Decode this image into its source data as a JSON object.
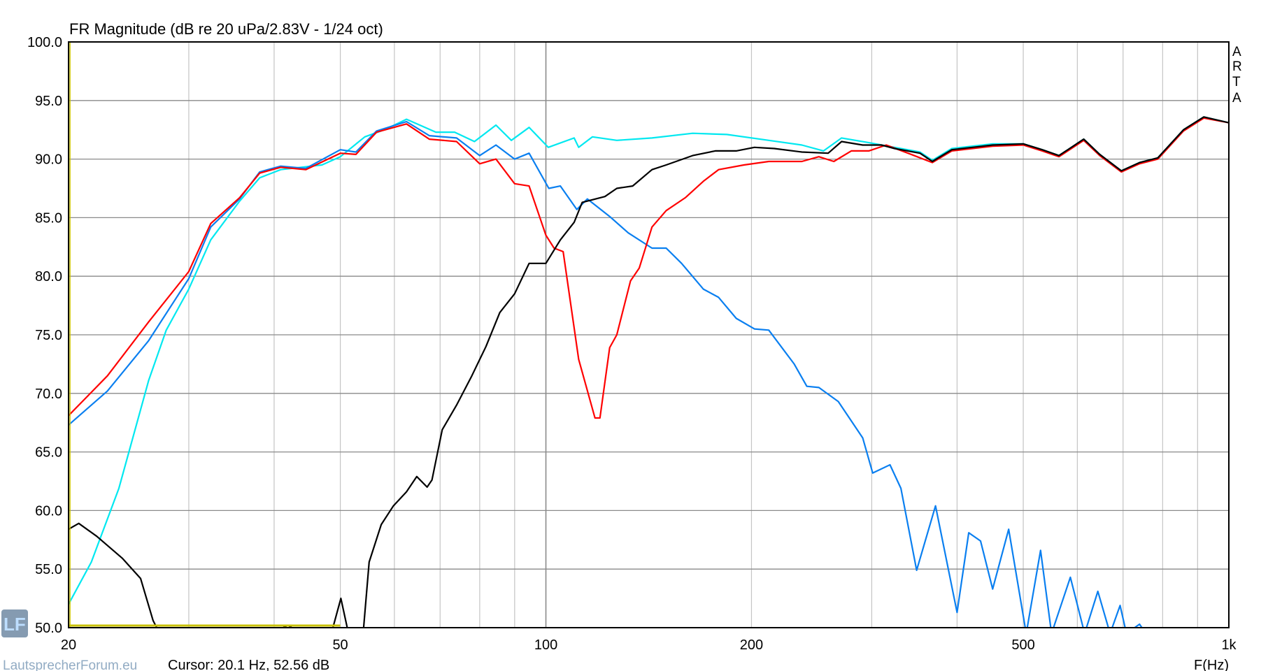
{
  "chart_data": {
    "type": "line",
    "title": "FR Magnitude (dB re 20 uPa/2.83V - 1/24 oct)",
    "xlabel": "F(Hz)",
    "ylabel": "",
    "xscale": "log",
    "xlim": [
      20,
      1000
    ],
    "ylim": [
      50,
      100
    ],
    "grid": true,
    "x_ticks": [
      {
        "v": 20,
        "label": "20"
      },
      {
        "v": 50,
        "label": "50"
      },
      {
        "v": 100,
        "label": "100"
      },
      {
        "v": 200,
        "label": "200"
      },
      {
        "v": 500,
        "label": "500"
      },
      {
        "v": 1000,
        "label": "1k"
      }
    ],
    "y_ticks": [
      {
        "v": 100,
        "label": "100.0"
      },
      {
        "v": 95,
        "label": "95.0"
      },
      {
        "v": 90,
        "label": "90.0"
      },
      {
        "v": 85,
        "label": "85.0"
      },
      {
        "v": 80,
        "label": "80.0"
      },
      {
        "v": 75,
        "label": "75.0"
      },
      {
        "v": 70,
        "label": "70.0"
      },
      {
        "v": 65,
        "label": "65.0"
      },
      {
        "v": 60,
        "label": "60.0"
      },
      {
        "v": 55,
        "label": "55.0"
      },
      {
        "v": 50,
        "label": "50.0"
      }
    ],
    "series": [
      {
        "color": "#00e8f0",
        "points": [
          [
            20,
            52.0
          ],
          [
            21.6,
            55.6
          ],
          [
            23.7,
            61.9
          ],
          [
            26.2,
            71.1
          ],
          [
            27.8,
            75.4
          ],
          [
            30,
            78.9
          ],
          [
            32.3,
            83.1
          ],
          [
            35.6,
            86.4
          ],
          [
            38.1,
            88.4
          ],
          [
            40.9,
            89.1
          ],
          [
            47,
            89.5
          ],
          [
            50,
            90.2
          ],
          [
            54.3,
            91.9
          ],
          [
            58,
            92.5
          ],
          [
            62.5,
            93.4
          ],
          [
            69,
            92.3
          ],
          [
            73.5,
            92.3
          ],
          [
            78.6,
            91.5
          ],
          [
            84.5,
            92.9
          ],
          [
            89,
            91.6
          ],
          [
            94.5,
            92.7
          ],
          [
            100.8,
            91.0
          ],
          [
            110,
            91.8
          ],
          [
            111.7,
            91.0
          ],
          [
            117,
            91.9
          ],
          [
            127,
            91.6
          ],
          [
            143,
            91.8
          ],
          [
            164,
            92.2
          ],
          [
            184,
            92.1
          ],
          [
            212,
            91.6
          ],
          [
            237,
            91.2
          ],
          [
            255,
            90.7
          ],
          [
            271,
            91.8
          ],
          [
            297,
            91.4
          ],
          [
            324,
            91.0
          ],
          [
            353,
            90.6
          ],
          [
            368,
            89.9
          ],
          [
            393,
            90.9
          ],
          [
            451,
            91.3
          ],
          [
            500,
            91.3
          ],
          [
            533,
            90.8
          ],
          [
            564,
            90.3
          ],
          [
            613,
            91.7
          ],
          [
            647,
            90.4
          ],
          [
            696,
            89.0
          ],
          [
            740,
            89.7
          ],
          [
            787,
            90.1
          ],
          [
            858,
            92.5
          ],
          [
            919,
            93.6
          ],
          [
            1000,
            93.1
          ]
        ]
      },
      {
        "color": "#0a7ff0",
        "points": [
          [
            20,
            67.3
          ],
          [
            22.8,
            70.2
          ],
          [
            26.2,
            74.5
          ],
          [
            30,
            79.8
          ],
          [
            32.3,
            84.2
          ],
          [
            35.6,
            86.6
          ],
          [
            38.1,
            88.9
          ],
          [
            40.9,
            89.4
          ],
          [
            44.5,
            89.2
          ],
          [
            50,
            90.8
          ],
          [
            52.7,
            90.6
          ],
          [
            56.5,
            92.4
          ],
          [
            62.5,
            93.2
          ],
          [
            67.5,
            92.0
          ],
          [
            74,
            91.8
          ],
          [
            80,
            90.3
          ],
          [
            84.5,
            91.2
          ],
          [
            90,
            90.0
          ],
          [
            94.5,
            90.5
          ],
          [
            101,
            87.5
          ],
          [
            105,
            87.7
          ],
          [
            111,
            85.7
          ],
          [
            115,
            86.6
          ],
          [
            124,
            85.1
          ],
          [
            132,
            83.7
          ],
          [
            143,
            82.4
          ],
          [
            150,
            82.4
          ],
          [
            158,
            81.1
          ],
          [
            170,
            78.9
          ],
          [
            179,
            78.2
          ],
          [
            190,
            76.4
          ],
          [
            202,
            75.5
          ],
          [
            212,
            75.4
          ],
          [
            231,
            72.5
          ],
          [
            241,
            70.6
          ],
          [
            251,
            70.5
          ],
          [
            268,
            69.3
          ],
          [
            291,
            66.2
          ],
          [
            301,
            63.2
          ],
          [
            319,
            63.9
          ],
          [
            331,
            61.9
          ],
          [
            349,
            54.9
          ],
          [
            372,
            60.4
          ],
          [
            400,
            51.3
          ],
          [
            416,
            58.1
          ],
          [
            433,
            57.4
          ],
          [
            451,
            53.3
          ],
          [
            476,
            58.4
          ],
          [
            505,
            49.5
          ],
          [
            530,
            56.6
          ],
          [
            550,
            49.5
          ],
          [
            586,
            54.3
          ],
          [
            615,
            49.5
          ],
          [
            643,
            53.1
          ],
          [
            670,
            49.5
          ],
          [
            693,
            51.9
          ],
          [
            708,
            49.5
          ],
          [
            740,
            50.3
          ],
          [
            760,
            49.3
          ]
        ]
      },
      {
        "color": "#ff0000",
        "points": [
          [
            20,
            68.1
          ],
          [
            22.8,
            71.5
          ],
          [
            26.2,
            76.1
          ],
          [
            30,
            80.4
          ],
          [
            32.3,
            84.5
          ],
          [
            35.6,
            86.7
          ],
          [
            38.1,
            88.8
          ],
          [
            40.9,
            89.3
          ],
          [
            44.5,
            89.1
          ],
          [
            50,
            90.5
          ],
          [
            52.7,
            90.4
          ],
          [
            56.5,
            92.3
          ],
          [
            62.5,
            93.0
          ],
          [
            67.5,
            91.7
          ],
          [
            74,
            91.5
          ],
          [
            80,
            89.6
          ],
          [
            84.5,
            90.0
          ],
          [
            90,
            87.9
          ],
          [
            94.5,
            87.7
          ],
          [
            100,
            83.5
          ],
          [
            102.8,
            82.4
          ],
          [
            106,
            82.1
          ],
          [
            111.7,
            72.9
          ],
          [
            118,
            67.9
          ],
          [
            120,
            67.9
          ],
          [
            124,
            73.9
          ],
          [
            127,
            75.0
          ],
          [
            133,
            79.6
          ],
          [
            137,
            80.7
          ],
          [
            143,
            84.2
          ],
          [
            150,
            85.6
          ],
          [
            160,
            86.7
          ],
          [
            170,
            88.1
          ],
          [
            179,
            89.1
          ],
          [
            195,
            89.5
          ],
          [
            212,
            89.8
          ],
          [
            237,
            89.8
          ],
          [
            251,
            90.2
          ],
          [
            264,
            89.8
          ],
          [
            280,
            90.7
          ],
          [
            297,
            90.7
          ],
          [
            315,
            91.2
          ],
          [
            339,
            90.5
          ],
          [
            368,
            89.7
          ],
          [
            393,
            90.7
          ],
          [
            451,
            91.1
          ],
          [
            500,
            91.2
          ],
          [
            533,
            90.7
          ],
          [
            564,
            90.2
          ],
          [
            613,
            91.6
          ],
          [
            647,
            90.3
          ],
          [
            696,
            88.9
          ],
          [
            740,
            89.6
          ],
          [
            787,
            90.0
          ],
          [
            858,
            92.4
          ],
          [
            919,
            93.5
          ],
          [
            1000,
            93.1
          ]
        ]
      },
      {
        "color": "#000000",
        "points": [
          [
            20,
            58.4
          ],
          [
            20.7,
            58.9
          ],
          [
            22,
            57.8
          ],
          [
            24,
            55.9
          ],
          [
            25.5,
            54.2
          ],
          [
            26.6,
            50.6
          ],
          [
            27.2,
            49.5
          ]
        ]
      },
      {
        "color": "#000000",
        "points": [
          [
            40.6,
            49.8
          ],
          [
            41.9,
            50.2
          ],
          [
            43,
            49.8
          ]
        ]
      },
      {
        "color": "#000000",
        "points": [
          [
            48.5,
            49.5
          ],
          [
            50.1,
            52.5
          ],
          [
            51.4,
            49.5
          ]
        ]
      },
      {
        "color": "#000000",
        "points": [
          [
            54,
            49.5
          ],
          [
            55.1,
            55.6
          ],
          [
            57.4,
            58.8
          ],
          [
            59.8,
            60.4
          ],
          [
            62.5,
            61.6
          ],
          [
            64.7,
            62.9
          ],
          [
            67,
            62.0
          ],
          [
            68.1,
            62.6
          ],
          [
            70.5,
            66.9
          ],
          [
            74,
            69.0
          ],
          [
            77.9,
            71.5
          ],
          [
            81.7,
            74.0
          ],
          [
            85.6,
            76.9
          ],
          [
            90,
            78.5
          ],
          [
            94.5,
            81.1
          ],
          [
            100,
            81.1
          ],
          [
            105,
            83.1
          ],
          [
            110,
            84.6
          ],
          [
            113,
            86.3
          ],
          [
            122,
            86.8
          ],
          [
            127,
            87.5
          ],
          [
            134,
            87.7
          ],
          [
            143,
            89.1
          ],
          [
            150,
            89.5
          ],
          [
            164,
            90.3
          ],
          [
            177,
            90.7
          ],
          [
            190,
            90.7
          ],
          [
            202,
            91.0
          ],
          [
            216,
            90.9
          ],
          [
            237,
            90.6
          ],
          [
            259,
            90.5
          ],
          [
            271,
            91.5
          ],
          [
            291,
            91.2
          ],
          [
            310,
            91.2
          ],
          [
            324,
            90.9
          ],
          [
            353,
            90.5
          ],
          [
            368,
            89.8
          ],
          [
            393,
            90.8
          ],
          [
            451,
            91.2
          ],
          [
            500,
            91.3
          ],
          [
            533,
            90.8
          ],
          [
            564,
            90.3
          ],
          [
            613,
            91.7
          ],
          [
            647,
            90.4
          ],
          [
            696,
            89.0
          ],
          [
            740,
            89.7
          ],
          [
            787,
            90.1
          ],
          [
            858,
            92.5
          ],
          [
            919,
            93.6
          ],
          [
            1000,
            93.1
          ]
        ]
      }
    ],
    "cursor": {
      "freq_hz": 20.1,
      "level_db": 52.56,
      "color": "#c8c000"
    }
  },
  "cursor_readout": "Cursor: 20.1 Hz, 52.56 dB",
  "side_label": [
    "A",
    "R",
    "T",
    "A"
  ],
  "watermark": {
    "logo": "LF",
    "text": "LautsprecherForum.eu"
  }
}
